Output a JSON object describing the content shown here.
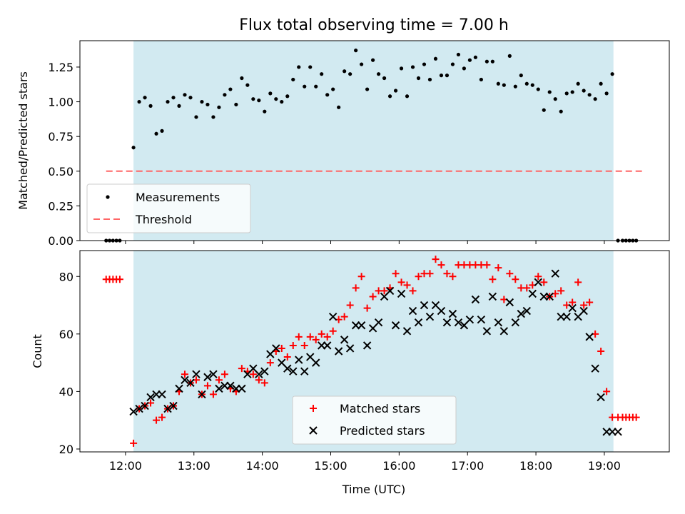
{
  "chart_data": {
    "title": "Flux total observing time = 7.00 h",
    "xlabel": "Time (UTC)",
    "x_ticks": [
      "12:00",
      "13:00",
      "14:00",
      "15:00",
      "16:00",
      "17:00",
      "18:00",
      "19:00"
    ],
    "xlim": [
      "11:20",
      "19:57"
    ],
    "observing_window": [
      "12:07",
      "19:08"
    ],
    "colors": {
      "window": "#add8e6",
      "measurements": "#000000",
      "threshold": "#ff6666",
      "matched": "#ff0000",
      "predicted": "#000000"
    },
    "charts": [
      {
        "type": "scatter",
        "ylabel": "Matched/Predicted stars",
        "ylim": [
          0,
          1.44
        ],
        "y_ticks": [
          "0.00",
          "0.25",
          "0.50",
          "0.75",
          "1.00",
          "1.25"
        ],
        "legend": {
          "position": "lower-left",
          "items": [
            "Measurements",
            "Threshold"
          ]
        },
        "threshold": {
          "name": "Threshold",
          "value": 0.5,
          "x_range": [
            "11:43",
            "19:33"
          ]
        },
        "series": [
          {
            "name": "Measurements",
            "x": [
              "11:43",
              "11:46",
              "11:49",
              "11:52",
              "11:55",
              "12:07",
              "12:12",
              "12:17",
              "12:22",
              "12:27",
              "12:32",
              "12:37",
              "12:42",
              "12:47",
              "12:52",
              "12:57",
              "13:02",
              "13:07",
              "13:12",
              "13:17",
              "13:22",
              "13:27",
              "13:32",
              "13:37",
              "13:42",
              "13:47",
              "13:52",
              "13:57",
              "14:02",
              "14:07",
              "14:12",
              "14:17",
              "14:22",
              "14:27",
              "14:32",
              "14:37",
              "14:42",
              "14:47",
              "14:52",
              "14:57",
              "15:02",
              "15:07",
              "15:12",
              "15:17",
              "15:22",
              "15:27",
              "15:32",
              "15:37",
              "15:42",
              "15:47",
              "15:52",
              "15:57",
              "16:02",
              "16:07",
              "16:12",
              "16:17",
              "16:22",
              "16:27",
              "16:32",
              "16:37",
              "16:42",
              "16:47",
              "16:52",
              "16:57",
              "17:02",
              "17:07",
              "17:12",
              "17:17",
              "17:22",
              "17:27",
              "17:32",
              "17:37",
              "17:42",
              "17:47",
              "17:52",
              "17:57",
              "18:02",
              "18:07",
              "18:12",
              "18:17",
              "18:22",
              "18:27",
              "18:32",
              "18:37",
              "18:42",
              "18:47",
              "18:52",
              "18:57",
              "19:02",
              "19:07",
              "19:12",
              "19:16",
              "19:19",
              "19:22",
              "19:25",
              "19:28"
            ],
            "y": [
              0,
              0,
              0,
              0,
              0,
              0.67,
              1.0,
              1.03,
              0.97,
              0.77,
              0.79,
              1.0,
              1.03,
              0.97,
              1.05,
              1.03,
              0.89,
              1.0,
              0.98,
              0.89,
              0.96,
              1.05,
              1.09,
              0.98,
              1.17,
              1.12,
              1.02,
              1.01,
              0.93,
              1.06,
              1.02,
              1.0,
              1.04,
              1.16,
              1.25,
              1.11,
              1.25,
              1.11,
              1.2,
              1.05,
              1.09,
              0.96,
              1.22,
              1.2,
              1.37,
              1.27,
              1.09,
              1.3,
              1.2,
              1.17,
              1.04,
              1.08,
              1.24,
              1.04,
              1.25,
              1.17,
              1.27,
              1.16,
              1.31,
              1.19,
              1.19,
              1.27,
              1.34,
              1.24,
              1.3,
              1.32,
              1.16,
              1.29,
              1.29,
              1.13,
              1.12,
              1.33,
              1.11,
              1.19,
              1.13,
              1.12,
              1.09,
              0.94,
              1.07,
              1.02,
              0.93,
              1.06,
              1.07,
              1.13,
              1.08,
              1.05,
              1.02,
              1.13,
              1.06,
              1.2,
              0,
              0,
              0,
              0,
              0,
              0
            ]
          }
        ]
      },
      {
        "type": "scatter",
        "ylabel": "Count",
        "ylim": [
          19,
          89
        ],
        "y_ticks": [
          "20",
          "40",
          "60",
          "80"
        ],
        "legend": {
          "position": "lower-center",
          "items": [
            "Matched stars",
            "Predicted stars"
          ]
        },
        "series": [
          {
            "name": "Matched stars",
            "x": [
              "11:43",
              "11:46",
              "11:49",
              "11:52",
              "11:55",
              "12:07",
              "12:12",
              "12:17",
              "12:22",
              "12:27",
              "12:32",
              "12:37",
              "12:42",
              "12:47",
              "12:52",
              "12:57",
              "13:02",
              "13:07",
              "13:12",
              "13:17",
              "13:22",
              "13:27",
              "13:32",
              "13:37",
              "13:42",
              "13:47",
              "13:52",
              "13:57",
              "14:02",
              "14:07",
              "14:12",
              "14:17",
              "14:22",
              "14:27",
              "14:32",
              "14:37",
              "14:42",
              "14:47",
              "14:52",
              "14:57",
              "15:02",
              "15:07",
              "15:12",
              "15:17",
              "15:22",
              "15:27",
              "15:32",
              "15:37",
              "15:42",
              "15:47",
              "15:52",
              "15:57",
              "16:02",
              "16:07",
              "16:12",
              "16:17",
              "16:22",
              "16:27",
              "16:32",
              "16:37",
              "16:42",
              "16:47",
              "16:52",
              "16:57",
              "17:02",
              "17:07",
              "17:12",
              "17:17",
              "17:22",
              "17:27",
              "17:32",
              "17:37",
              "17:42",
              "17:47",
              "17:52",
              "17:57",
              "18:02",
              "18:07",
              "18:12",
              "18:17",
              "18:22",
              "18:27",
              "18:32",
              "18:37",
              "18:42",
              "18:47",
              "18:52",
              "18:57",
              "19:02",
              "19:07",
              "19:12",
              "19:16",
              "19:19",
              "19:22",
              "19:25",
              "19:28"
            ],
            "y": [
              79,
              79,
              79,
              79,
              79,
              22,
              34,
              35,
              36,
              30,
              31,
              34,
              35,
              40,
              46,
              43,
              44,
              39,
              42,
              39,
              44,
              46,
              41,
              40,
              48,
              47,
              46,
              44,
              43,
              50,
              54,
              55,
              52,
              56,
              59,
              56,
              59,
              58,
              60,
              59,
              61,
              65,
              66,
              70,
              76,
              80,
              69,
              73,
              75,
              75,
              76,
              81,
              78,
              77,
              75,
              80,
              81,
              81,
              86,
              84,
              81,
              80,
              84,
              84,
              84,
              84,
              84,
              84,
              79,
              83,
              72,
              81,
              79,
              76,
              76,
              77,
              80,
              78,
              73,
              74,
              75,
              70,
              71,
              78,
              70,
              71,
              60,
              54,
              40,
              31,
              31,
              31,
              31,
              31,
              31,
              31
            ]
          },
          {
            "name": "Predicted stars",
            "x": [
              "12:07",
              "12:12",
              "12:17",
              "12:22",
              "12:27",
              "12:32",
              "12:37",
              "12:42",
              "12:47",
              "12:52",
              "12:57",
              "13:02",
              "13:07",
              "13:12",
              "13:17",
              "13:22",
              "13:27",
              "13:32",
              "13:37",
              "13:42",
              "13:47",
              "13:52",
              "13:57",
              "14:02",
              "14:07",
              "14:12",
              "14:17",
              "14:22",
              "14:27",
              "14:32",
              "14:37",
              "14:42",
              "14:47",
              "14:52",
              "14:57",
              "15:02",
              "15:07",
              "15:12",
              "15:17",
              "15:22",
              "15:27",
              "15:32",
              "15:37",
              "15:42",
              "15:47",
              "15:52",
              "15:57",
              "16:02",
              "16:07",
              "16:12",
              "16:17",
              "16:22",
              "16:27",
              "16:32",
              "16:37",
              "16:42",
              "16:47",
              "16:52",
              "16:57",
              "17:02",
              "17:07",
              "17:12",
              "17:17",
              "17:22",
              "17:27",
              "17:32",
              "17:37",
              "17:42",
              "17:47",
              "17:52",
              "17:57",
              "18:02",
              "18:07",
              "18:12",
              "18:17",
              "18:22",
              "18:27",
              "18:32",
              "18:37",
              "18:42",
              "18:47",
              "18:52",
              "18:57",
              "19:02",
              "19:07",
              "19:12"
            ],
            "y": [
              33,
              34,
              35,
              38,
              39,
              39,
              34,
              35,
              41,
              44,
              43,
              46,
              39,
              45,
              46,
              41,
              42,
              42,
              41,
              41,
              46,
              48,
              46,
              47,
              53,
              55,
              50,
              48,
              47,
              51,
              47,
              52,
              50,
              56,
              56,
              66,
              54,
              58,
              55,
              63,
              63,
              56,
              62,
              64,
              73,
              75,
              63,
              74,
              61,
              68,
              64,
              70,
              66,
              70,
              68,
              64,
              67,
              64,
              63,
              65,
              72,
              65,
              61,
              73,
              64,
              61,
              71,
              64,
              67,
              68,
              74,
              78,
              73,
              73,
              81,
              66,
              66,
              69,
              66,
              68,
              59,
              48,
              38,
              26,
              26,
              26
            ]
          }
        ]
      }
    ]
  }
}
